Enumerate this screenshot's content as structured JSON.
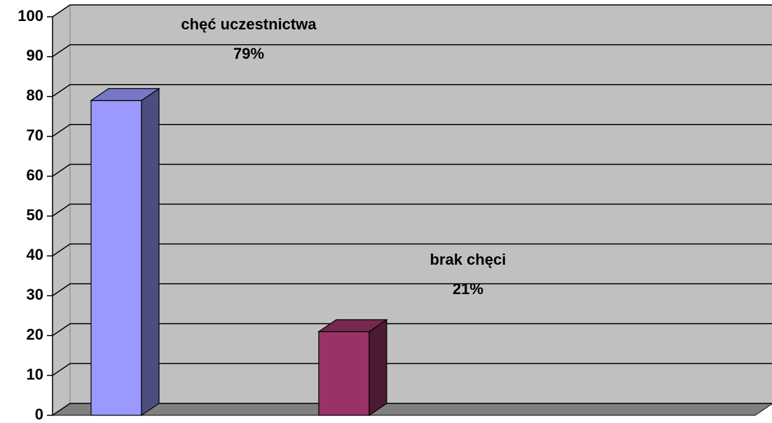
{
  "chart_data": {
    "type": "bar3d",
    "categories": [
      "chęć uczestnictwa",
      "brak chęci"
    ],
    "values": [
      79,
      21
    ],
    "value_labels": [
      "79%",
      "21%"
    ],
    "colors": [
      "#9999ff",
      "#993366"
    ],
    "ylim": [
      0,
      100
    ],
    "yticks": [
      0,
      10,
      20,
      30,
      40,
      50,
      60,
      70,
      80,
      90,
      100
    ],
    "grid": true
  }
}
